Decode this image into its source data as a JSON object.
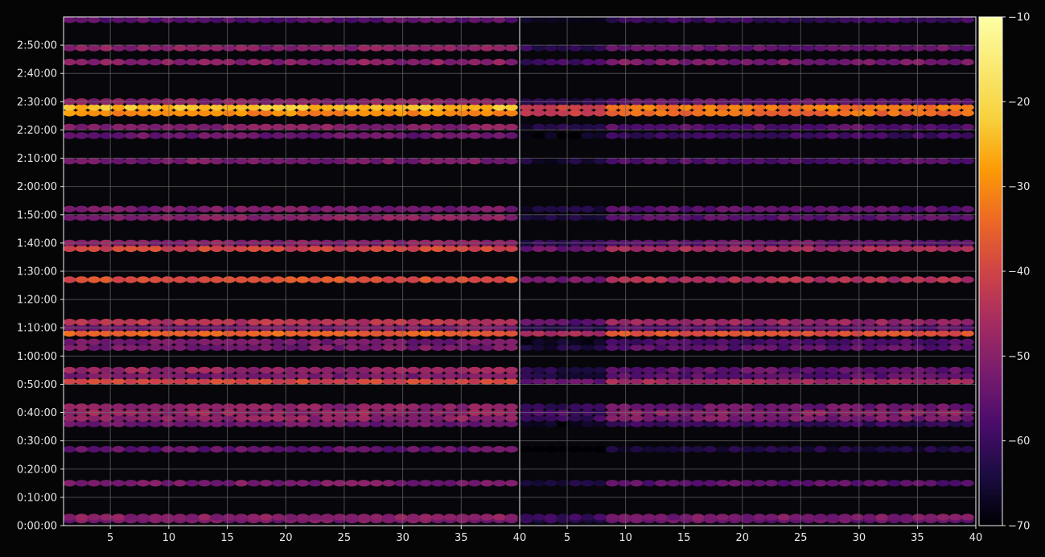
{
  "chart_data": {
    "type": "heatmap",
    "description_style": "hexbin-like streaks",
    "panels": [
      {
        "name": "",
        "x_ticks": [
          5,
          10,
          15,
          20,
          25,
          30,
          35,
          40
        ],
        "x_range": [
          1,
          40
        ]
      },
      {
        "name": "",
        "x_ticks": [
          5,
          10,
          15,
          20,
          25,
          30,
          35,
          40
        ],
        "x_range": [
          1,
          40
        ]
      }
    ],
    "y_ticks": [
      "0:00:00",
      "0:10:00",
      "0:20:00",
      "0:30:00",
      "0:40:00",
      "0:50:00",
      "1:00:00",
      "1:10:00",
      "1:20:00",
      "1:30:00",
      "1:40:00",
      "1:50:00",
      "2:00:00",
      "2:10:00",
      "2:20:00",
      "2:30:00",
      "2:40:00",
      "2:50:00"
    ],
    "y_range_seconds": [
      0,
      10800
    ],
    "colorbar": {
      "ticks": [
        "−10",
        "−20",
        "−30",
        "−40",
        "−50",
        "−60",
        "−70"
      ],
      "range": [
        -70,
        -10
      ],
      "colormap": "inferno"
    },
    "bands": [
      {
        "t": 2,
        "left": -52,
        "right": -54
      },
      {
        "t": 3,
        "left": -50,
        "right": -52
      },
      {
        "t": 15,
        "left": -52,
        "right": -56
      },
      {
        "t": 27,
        "left": -55,
        "right": -64
      },
      {
        "t": 36,
        "left": -54,
        "right": -60
      },
      {
        "t": 38,
        "left": -49,
        "right": -52
      },
      {
        "t": 40,
        "left": -48,
        "right": -50
      },
      {
        "t": 42,
        "left": -50,
        "right": -54
      },
      {
        "t": 51,
        "left": -40,
        "right": -46
      },
      {
        "t": 53,
        "left": -52,
        "right": -56
      },
      {
        "t": 55,
        "left": -48,
        "right": -55
      },
      {
        "t": 63,
        "left": -52,
        "right": -56
      },
      {
        "t": 65,
        "left": -53,
        "right": -58
      },
      {
        "t": 68,
        "left": -35,
        "right": -38
      },
      {
        "t": 70,
        "left": -52,
        "right": -56
      },
      {
        "t": 72,
        "left": -44,
        "right": -48
      },
      {
        "t": 87,
        "left": -38,
        "right": -45
      },
      {
        "t": 98,
        "left": -40,
        "right": -46
      },
      {
        "t": 100,
        "left": -50,
        "right": -54
      },
      {
        "t": 109,
        "left": -50,
        "right": -56
      },
      {
        "t": 112,
        "left": -52,
        "right": -56
      },
      {
        "t": 129,
        "left": -52,
        "right": -57
      },
      {
        "t": 138,
        "left": -54,
        "right": -60
      },
      {
        "t": 141,
        "left": -50,
        "right": -56
      },
      {
        "t": 146,
        "left": -30,
        "right": -34
      },
      {
        "t": 148,
        "left": -24,
        "right": -32
      },
      {
        "t": 150,
        "left": -50,
        "right": -55
      },
      {
        "t": 164,
        "left": -50,
        "right": -52
      },
      {
        "t": 169,
        "left": -50,
        "right": -54
      },
      {
        "t": 179,
        "left": -56,
        "right": -60
      }
    ]
  },
  "colors": {
    "background": "#050505",
    "grid": "#6a6a6a",
    "frame": "#f0f0f0"
  }
}
